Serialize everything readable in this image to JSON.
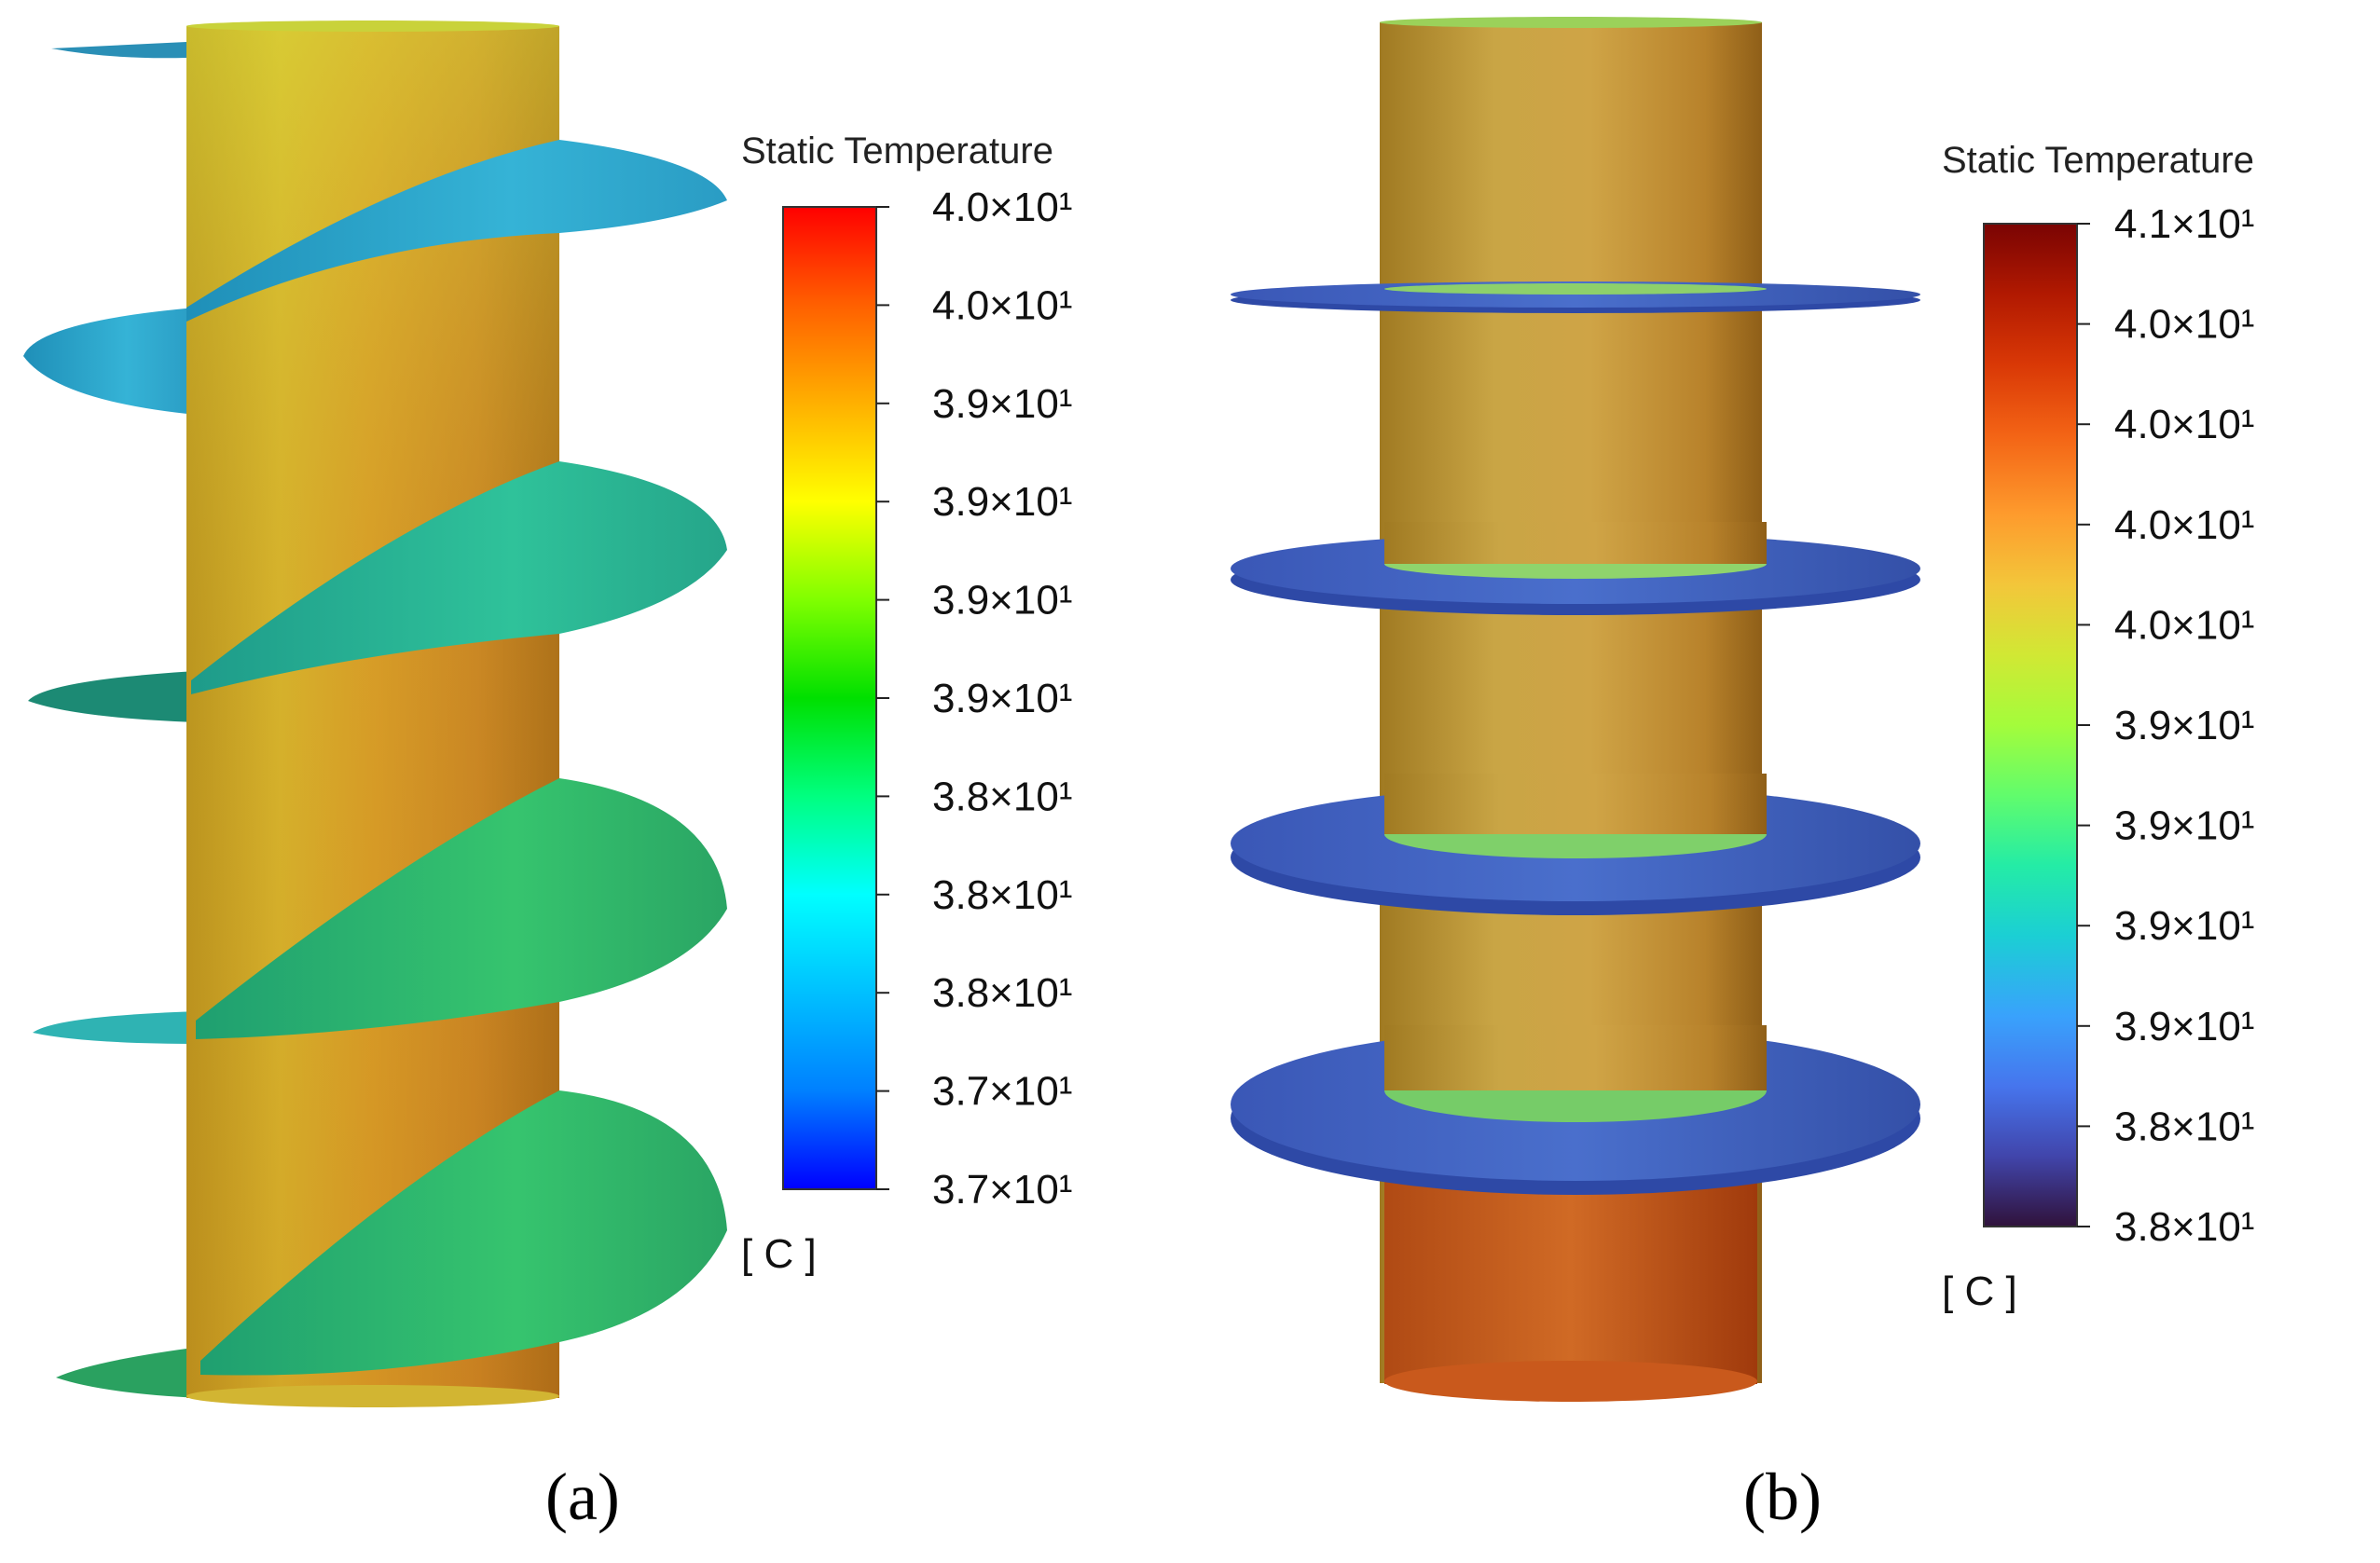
{
  "figure": {
    "panels": [
      {
        "id": "a",
        "caption": "(a)",
        "geometry": "helical fins",
        "legend": {
          "title": "Static Temperature",
          "unit": "[ C ]",
          "colormap": [
            "#0000ff",
            "#0080ff",
            "#00ffff",
            "#00ff80",
            "#00ff00",
            "#80ff00",
            "#ffff00",
            "#ffc000",
            "#ff8000",
            "#ff4000",
            "#ff0000"
          ],
          "tick_labels": [
            "4.0×10¹",
            "4.0×10¹",
            "3.9×10¹",
            "3.9×10¹",
            "3.9×10¹",
            "3.9×10¹",
            "3.8×10¹",
            "3.8×10¹",
            "3.8×10¹",
            "3.7×10¹",
            "3.7×10¹"
          ]
        }
      },
      {
        "id": "b",
        "caption": "(b)",
        "geometry": "annular fins",
        "legend": {
          "title": "Static Temperature",
          "unit": "[ C ]",
          "colormap": [
            "#30123b",
            "#4145ab",
            "#4675ed",
            "#39a2fc",
            "#1bcfd4",
            "#24eca6",
            "#61fc6c",
            "#a4fc3b",
            "#d1e834",
            "#f3c63a",
            "#fe9b2d",
            "#f36315",
            "#d93806",
            "#b11901",
            "#7a0403"
          ],
          "tick_labels": [
            "4.1×10¹",
            "4.0×10¹",
            "4.0×10¹",
            "4.0×10¹",
            "4.0×10¹",
            "3.9×10¹",
            "3.9×10¹",
            "3.9×10¹",
            "3.9×10¹",
            "3.8×10¹",
            "3.8×10¹"
          ]
        }
      }
    ]
  }
}
